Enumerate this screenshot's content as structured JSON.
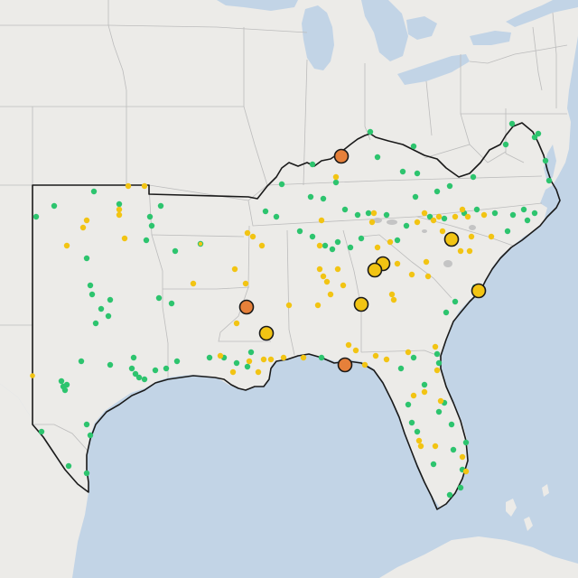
{
  "map": {
    "colors": {
      "land": "#ecebe8",
      "water": "#c2d4e6",
      "state_border": "#bcbcbc",
      "region_outline": "#1a1a1a",
      "green": "#2dc46e",
      "yellow": "#f2c413",
      "orange": "#e6803a",
      "gray": "#c4c4c4"
    },
    "markers": {
      "large_orange": 3,
      "large_yellow": 7
    }
  }
}
